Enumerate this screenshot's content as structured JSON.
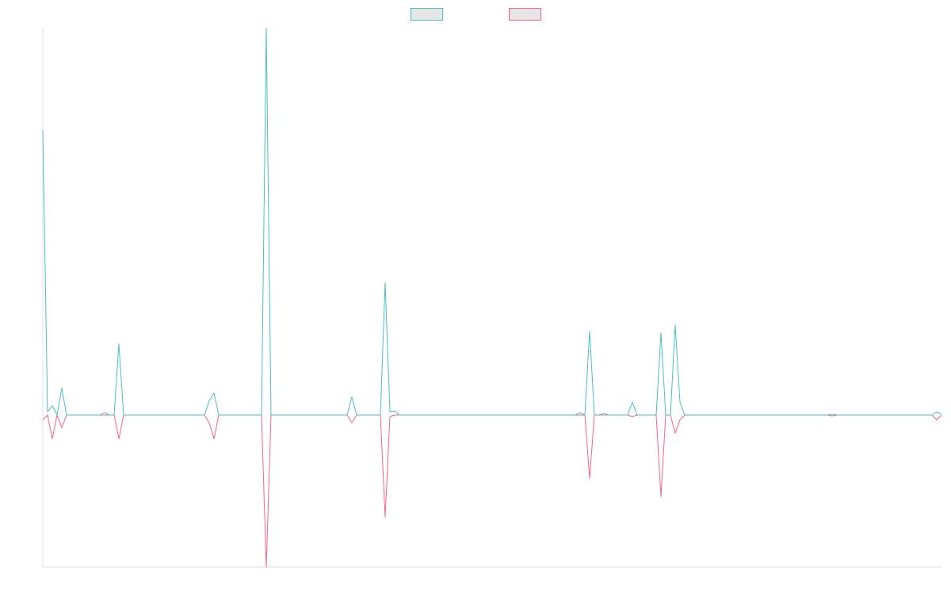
{
  "chart_data": {
    "type": "line",
    "ylim": [
      -96,
      244
    ],
    "series": [
      {
        "color": "#ff6384",
        "values": [
          -3,
          0,
          -15,
          0,
          -8,
          0,
          0,
          0,
          0,
          0,
          0,
          0,
          0,
          0,
          0,
          0,
          -15,
          0,
          0,
          0,
          0,
          0,
          0,
          0,
          0,
          0,
          0,
          0,
          0,
          0,
          0,
          0,
          0,
          0,
          0,
          -5,
          -15,
          0,
          0,
          0,
          0,
          0,
          0,
          0,
          0,
          0,
          0,
          -96,
          0,
          0,
          0,
          0,
          0,
          0,
          0,
          0,
          0,
          0,
          0,
          0,
          0,
          0,
          0,
          0,
          0,
          -5,
          0,
          0,
          0,
          0,
          0,
          0,
          -64.5,
          -1,
          0,
          0,
          0,
          0,
          0,
          0,
          0,
          0,
          0,
          0,
          0,
          0,
          0,
          0,
          0,
          0,
          0,
          0,
          0,
          0,
          0,
          0,
          0,
          0,
          0,
          0,
          0,
          0,
          0,
          0,
          0,
          0,
          0,
          0,
          0,
          0,
          0,
          0,
          0,
          0,
          0,
          -40,
          0,
          0,
          0,
          0,
          0,
          0,
          0,
          0,
          -1,
          0,
          0,
          0,
          0,
          0,
          -51.5,
          0,
          0,
          -11.5,
          -3,
          0,
          0,
          0,
          0,
          0,
          0,
          0,
          0,
          0,
          0,
          0,
          0,
          0,
          0,
          0,
          0,
          0,
          0,
          0,
          0,
          0,
          0,
          0,
          0,
          0,
          0,
          0,
          0,
          0,
          0,
          0,
          -0.5,
          0,
          0,
          0,
          0,
          0,
          0,
          0,
          0,
          0,
          0,
          0,
          0,
          0,
          0,
          0,
          0,
          0,
          0,
          0,
          0,
          0,
          -3,
          0
        ]
      },
      {
        "color": "#4bc0c0",
        "values": [
          180,
          2,
          6,
          0,
          17,
          0,
          0,
          0,
          0,
          0,
          0,
          0,
          0,
          1.5,
          0,
          0,
          45,
          0,
          0,
          0,
          0,
          0,
          0,
          0,
          0,
          0,
          0,
          0,
          0,
          0,
          0,
          0,
          0,
          0,
          0,
          9,
          14,
          0,
          0,
          0,
          0,
          0,
          0,
          0,
          0,
          0,
          0,
          244,
          0,
          0,
          0,
          0,
          0,
          0,
          0,
          0,
          0,
          0,
          0,
          0,
          0,
          0,
          0,
          0,
          0,
          11.5,
          0,
          0,
          0,
          0,
          0,
          0,
          83.5,
          2,
          2.5,
          0,
          0,
          0,
          0,
          0,
          0,
          0,
          0,
          0,
          0,
          0,
          0,
          0,
          0,
          0,
          0,
          0,
          0,
          0,
          0,
          0,
          0,
          0,
          0,
          0,
          0,
          0,
          0,
          0,
          0,
          0,
          0,
          0,
          0,
          0,
          0,
          0,
          0,
          1.5,
          0,
          53,
          0,
          0,
          1,
          0,
          0,
          0,
          0,
          0,
          8,
          0,
          0,
          0,
          0,
          0,
          52,
          0,
          0,
          57,
          8,
          0,
          0,
          0,
          0,
          0,
          0,
          0,
          0,
          0,
          0,
          0,
          0,
          0,
          0,
          0,
          0,
          0,
          0,
          0,
          0,
          0,
          0,
          0,
          0,
          0,
          0,
          0,
          0,
          0,
          0,
          0,
          0.5,
          0,
          0,
          0,
          0,
          0,
          0,
          0,
          0,
          0,
          0,
          0,
          0,
          0,
          0,
          0,
          0,
          0,
          0,
          0,
          0,
          0,
          2,
          0.5
        ]
      }
    ]
  }
}
